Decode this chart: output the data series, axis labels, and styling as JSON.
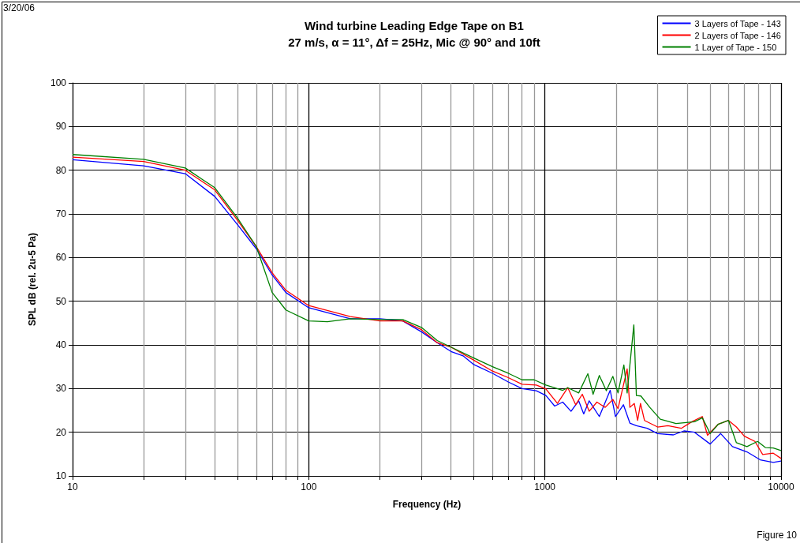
{
  "chart_data": {
    "type": "line",
    "title": "Wind turbine Leading Edge Tape on B1",
    "subtitle": "27 m/s, α = 11°, Δf = 25Hz, Mic @ 90° and 10ft",
    "xlabel": "Frequency (Hz)",
    "ylabel": "SPL dB (rel. 2u-5 Pa)",
    "annotations": [
      "3/20/06",
      "Figure 10"
    ],
    "log": "x",
    "grid": true,
    "legend": "top right",
    "marker": "none",
    "line_style": "solid",
    "xlim": [
      10,
      10000
    ],
    "ylim": [
      10,
      100
    ],
    "xticks": [
      10,
      {
        "value": 20,
        "label": null
      },
      {
        "value": 30,
        "label": null
      },
      {
        "value": 40,
        "label": null
      },
      {
        "value": 50,
        "label": null
      },
      {
        "value": 60,
        "label": null
      },
      {
        "value": 70,
        "label": null
      },
      {
        "value": 80,
        "label": null
      },
      {
        "value": 90,
        "label": null
      },
      100,
      {
        "value": 200,
        "label": null
      },
      {
        "value": 300,
        "label": null
      },
      {
        "value": 400,
        "label": null
      },
      {
        "value": 500,
        "label": null
      },
      {
        "value": 600,
        "label": null
      },
      {
        "value": 700,
        "label": null
      },
      {
        "value": 800,
        "label": null
      },
      {
        "value": 900,
        "label": null
      },
      1000,
      {
        "value": 2000,
        "label": null
      },
      {
        "value": 3000,
        "label": null
      },
      {
        "value": 4000,
        "label": null
      },
      {
        "value": 5000,
        "label": null
      },
      {
        "value": 6000,
        "label": null
      },
      {
        "value": 7000,
        "label": null
      },
      {
        "value": 8000,
        "label": null
      },
      {
        "value": 9000,
        "label": null
      },
      10000
    ],
    "yticks": [
      10,
      20,
      30,
      40,
      50,
      60,
      70,
      80,
      90,
      100
    ],
    "series": [
      {
        "name": "3 Layers of Tape - 143",
        "color": "#0000ff",
        "x": [
          10,
          20,
          30,
          40,
          50,
          60,
          70,
          80,
          100,
          150,
          200,
          250,
          300,
          350,
          400,
          450,
          500,
          600,
          700,
          800,
          920,
          1010,
          1100,
          1190,
          1290,
          1390,
          1460,
          1540,
          1700,
          1890,
          1990,
          2150,
          2290,
          2440,
          2710,
          3000,
          3500,
          3880,
          4300,
          5010,
          5550,
          6230,
          7170,
          8150,
          9270,
          10000
        ],
        "values": [
          82.4,
          81,
          79.2,
          74,
          67.5,
          62,
          56,
          52,
          48.5,
          46,
          46,
          45.5,
          43,
          40.5,
          38.5,
          37.5,
          35.5,
          33.5,
          31.5,
          30,
          29.5,
          28.4,
          26,
          26.9,
          24.8,
          27.2,
          24.2,
          27.2,
          23.6,
          29.6,
          23.6,
          26.3,
          22.1,
          21.5,
          20.9,
          19.7,
          19.4,
          20.3,
          20,
          17.3,
          19.7,
          16.7,
          15.5,
          13.7,
          13.1,
          13.4
        ]
      },
      {
        "name": "2 Layers of Tape - 146",
        "color": "#ff0000",
        "x": [
          10,
          20,
          30,
          40,
          50,
          60,
          70,
          80,
          100,
          150,
          200,
          250,
          300,
          350,
          400,
          500,
          600,
          700,
          800,
          920,
          1010,
          1130,
          1250,
          1350,
          1440,
          1540,
          1660,
          1800,
          1940,
          2040,
          2230,
          2290,
          2390,
          2470,
          2540,
          2640,
          3000,
          3320,
          3780,
          4190,
          4640,
          4880,
          5410,
          5990,
          6470,
          6990,
          7750,
          8360,
          9270,
          10000
        ],
        "values": [
          83,
          82,
          80,
          75.5,
          68.5,
          62.5,
          56.5,
          52.5,
          49,
          46.5,
          45.5,
          45.5,
          43.5,
          40.5,
          39.5,
          36.5,
          34,
          32.5,
          31,
          30.8,
          29.9,
          26.6,
          30.2,
          26.3,
          28.7,
          24.8,
          26.9,
          25.7,
          27.5,
          25.4,
          34.5,
          25.7,
          26.6,
          22.7,
          26.6,
          22.7,
          21.2,
          21.5,
          20.9,
          22.4,
          23.6,
          19.3,
          21.8,
          22.7,
          21.2,
          19.1,
          17.9,
          14.9,
          15.2,
          14
        ]
      },
      {
        "name": "1 Layer of Tape - 150",
        "color": "#008000",
        "x": [
          10,
          20,
          30,
          40,
          50,
          60,
          70,
          80,
          100,
          120,
          150,
          200,
          250,
          300,
          350,
          400,
          500,
          600,
          700,
          800,
          900,
          1010,
          1190,
          1250,
          1390,
          1520,
          1600,
          1700,
          1820,
          1940,
          2040,
          2160,
          2230,
          2380,
          2440,
          2550,
          2780,
          3080,
          3590,
          4300,
          4640,
          5010,
          5410,
          5990,
          6470,
          7170,
          7950,
          8580,
          9270,
          10000
        ],
        "values": [
          83.6,
          82.5,
          80.5,
          76,
          69,
          62.5,
          52,
          48,
          45.5,
          45.3,
          46,
          45.8,
          45.8,
          44,
          41,
          39.5,
          37,
          35,
          33.5,
          32,
          32,
          30.8,
          29.6,
          30.2,
          29,
          33.4,
          28.7,
          33,
          29.5,
          32.8,
          29,
          35.4,
          29,
          44.6,
          28.4,
          28.3,
          25.7,
          23,
          22,
          22.4,
          23.3,
          19.7,
          21.8,
          22.7,
          17.6,
          16.7,
          17.9,
          16.5,
          16.4,
          15.8
        ]
      }
    ]
  }
}
